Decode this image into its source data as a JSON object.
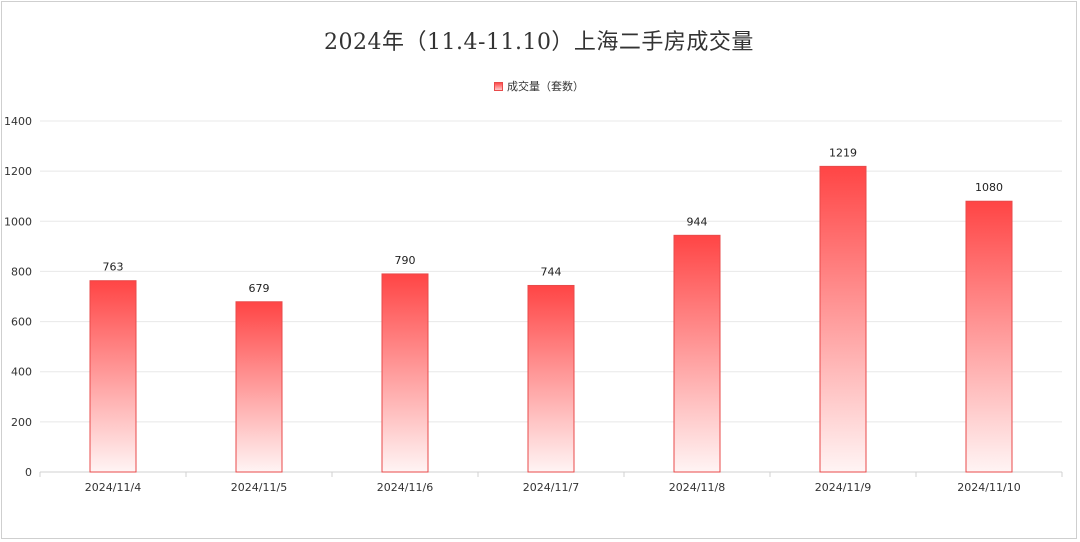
{
  "chart_data": {
    "type": "bar",
    "title": "2024年（11.4-11.10）上海二手房成交量",
    "categories": [
      "2024/11/4",
      "2024/11/5",
      "2024/11/6",
      "2024/11/7",
      "2024/11/8",
      "2024/11/9",
      "2024/11/10"
    ],
    "series": [
      {
        "name": "成交量（套数）",
        "values": [
          763,
          679,
          790,
          744,
          944,
          1219,
          1080
        ]
      }
    ],
    "ylim": [
      0,
      1400
    ],
    "yticks": [
      0,
      200,
      400,
      600,
      800,
      1000,
      1200,
      1400
    ],
    "grid": true,
    "legend_position": "top-center",
    "bar_color_top": "#ff4545",
    "bar_color_bottom": "#fff4f4",
    "bar_border_color": "#e84a4a",
    "gridline_color": "#e8e8e8"
  }
}
